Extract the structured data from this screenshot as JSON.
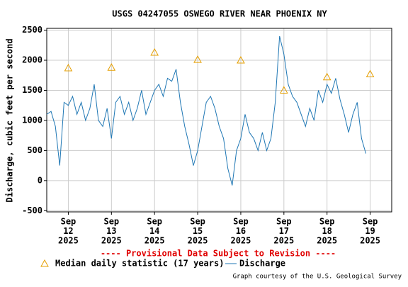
{
  "chart_data": {
    "type": "line",
    "title": "USGS 04247055 OSWEGO RIVER NEAR PHOENIX NY",
    "y_label": "Discharge, cubic feet per second",
    "note": "---- Provisional Data Subject to Revision ----",
    "credit": "Graph courtesy of the U.S. Geological Survey",
    "xlim": [
      11.5,
      19.5
    ],
    "xticks": [
      {
        "value": 12,
        "label": [
          "Sep",
          "12",
          "2025"
        ]
      },
      {
        "value": 13,
        "label": [
          "Sep",
          "13",
          "2025"
        ]
      },
      {
        "value": 14,
        "label": [
          "Sep",
          "14",
          "2025"
        ]
      },
      {
        "value": 15,
        "label": [
          "Sep",
          "15",
          "2025"
        ]
      },
      {
        "value": 16,
        "label": [
          "Sep",
          "16",
          "2025"
        ]
      },
      {
        "value": 17,
        "label": [
          "Sep",
          "17",
          "2025"
        ]
      },
      {
        "value": 18,
        "label": [
          "Sep",
          "18",
          "2025"
        ]
      },
      {
        "value": 19,
        "label": [
          "Sep",
          "19",
          "2025"
        ]
      }
    ],
    "ylim": [
      -520,
      2530
    ],
    "yticks": [
      -500,
      0,
      500,
      1000,
      1500,
      2000,
      2500
    ],
    "grid": true,
    "series": [
      {
        "name": "Median daily statistic (17 years)",
        "marker": "triangle",
        "color": "#e69f00",
        "x": [
          12,
          13,
          14,
          15,
          16,
          17,
          18,
          19
        ],
        "values": [
          1870,
          1880,
          2130,
          2010,
          2000,
          1500,
          1720,
          1770
        ]
      },
      {
        "name": "Discharge",
        "marker": "line",
        "color": "#1f77b4",
        "x": [
          11.5,
          11.6,
          11.7,
          11.8,
          11.9,
          12.0,
          12.1,
          12.2,
          12.3,
          12.4,
          12.5,
          12.6,
          12.7,
          12.8,
          12.9,
          13.0,
          13.1,
          13.2,
          13.3,
          13.4,
          13.5,
          13.6,
          13.7,
          13.8,
          13.9,
          14.0,
          14.1,
          14.2,
          14.3,
          14.4,
          14.5,
          14.6,
          14.7,
          14.8,
          14.9,
          15.0,
          15.1,
          15.2,
          15.3,
          15.4,
          15.5,
          15.6,
          15.7,
          15.8,
          15.9,
          16.0,
          16.1,
          16.2,
          16.3,
          16.4,
          16.5,
          16.6,
          16.7,
          16.8,
          16.9,
          17.0,
          17.1,
          17.2,
          17.3,
          17.4,
          17.5,
          17.6,
          17.7,
          17.8,
          17.9,
          18.0,
          18.1,
          18.2,
          18.3,
          18.4,
          18.5,
          18.6,
          18.7,
          18.8,
          18.9
        ],
        "values": [
          1100,
          1150,
          900,
          250,
          1300,
          1250,
          1400,
          1100,
          1300,
          1000,
          1200,
          1600,
          1000,
          900,
          1200,
          700,
          1300,
          1400,
          1100,
          1300,
          1000,
          1200,
          1500,
          1100,
          1300,
          1500,
          1600,
          1400,
          1700,
          1650,
          1850,
          1300,
          900,
          600,
          250,
          500,
          900,
          1300,
          1400,
          1200,
          900,
          700,
          200,
          -80,
          500,
          700,
          1100,
          800,
          700,
          500,
          800,
          500,
          700,
          1300,
          2400,
          2100,
          1600,
          1400,
          1300,
          1100,
          900,
          1200,
          1000,
          1500,
          1300,
          1600,
          1450,
          1700,
          1350,
          1100,
          800,
          1100,
          1300,
          700,
          450
        ]
      }
    ]
  }
}
